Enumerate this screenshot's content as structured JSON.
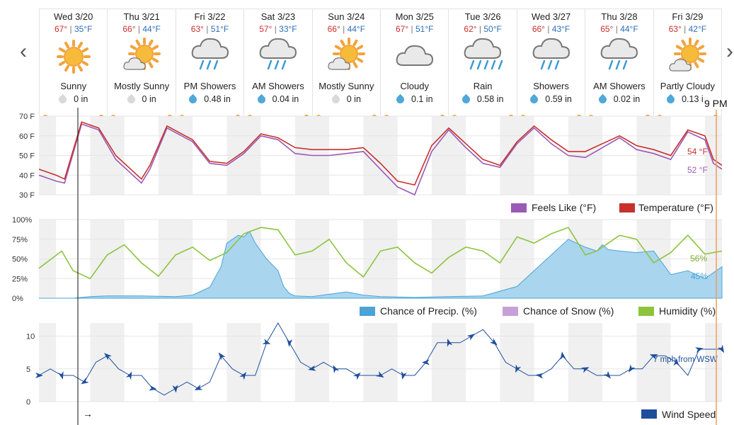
{
  "nav": {
    "prev_label": "‹",
    "next_label": "›"
  },
  "time_label": "9 PM",
  "arrow_label": "→",
  "days": [
    {
      "name": "Wed 3/20",
      "hi": "67°",
      "lo": "35°F",
      "icon": "sunny-icon",
      "cond": "Sunny",
      "precip": "0 in",
      "wet": false
    },
    {
      "name": "Thu 3/21",
      "hi": "66°",
      "lo": "44°F",
      "icon": "mostly-sunny-icon",
      "cond": "Mostly Sunny",
      "precip": "0 in",
      "wet": false
    },
    {
      "name": "Fri 3/22",
      "hi": "63°",
      "lo": "51°F",
      "icon": "showers-icon",
      "cond": "PM Showers",
      "precip": "0.48 in",
      "wet": true
    },
    {
      "name": "Sat 3/23",
      "hi": "57°",
      "lo": "33°F",
      "icon": "showers-icon",
      "cond": "AM Showers",
      "precip": "0.04 in",
      "wet": true
    },
    {
      "name": "Sun 3/24",
      "hi": "66°",
      "lo": "44°F",
      "icon": "mostly-sunny-icon",
      "cond": "Mostly Sunny",
      "precip": "0 in",
      "wet": false
    },
    {
      "name": "Mon 3/25",
      "hi": "67°",
      "lo": "51°F",
      "icon": "cloudy-icon",
      "cond": "Cloudy",
      "precip": "0.1 in",
      "wet": true
    },
    {
      "name": "Tue 3/26",
      "hi": "62°",
      "lo": "50°F",
      "icon": "rain-icon",
      "cond": "Rain",
      "precip": "0.58 in",
      "wet": true
    },
    {
      "name": "Wed 3/27",
      "hi": "66°",
      "lo": "43°F",
      "icon": "showers-icon",
      "cond": "Showers",
      "precip": "0.59 in",
      "wet": true
    },
    {
      "name": "Thu 3/28",
      "hi": "65°",
      "lo": "44°F",
      "icon": "showers-icon",
      "cond": "AM Showers",
      "precip": "0.02 in",
      "wet": true
    },
    {
      "name": "Fri 3/29",
      "hi": "63°",
      "lo": "42°F",
      "icon": "partly-cloudy-icon",
      "cond": "Partly Cloudy",
      "precip": "0.13 in",
      "wet": true
    }
  ],
  "colors": {
    "temperature": "#c8302c",
    "feels_like": "#9b59b6",
    "precip": "#4ba3d6",
    "snow": "#c7a0d8",
    "humidity": "#8cc43c",
    "wind": "#1f4f9c",
    "hi_text": "#c8302c",
    "lo_text": "#2d6fb7"
  },
  "chart_data": [
    {
      "type": "line",
      "yticks": [
        "70 F",
        "60 F",
        "50 F",
        "40 F",
        "30 F"
      ],
      "ylim": [
        30,
        70
      ],
      "x_units": "hours from 12 AM Wed 3/20",
      "series": [
        {
          "name": "Temperature (°F)",
          "x": [
            0,
            6,
            9,
            15,
            21,
            27,
            33,
            36,
            39,
            45,
            54,
            60,
            66,
            72,
            78,
            84,
            90,
            96,
            102,
            108,
            114,
            120,
            126,
            132,
            138,
            144,
            150,
            156,
            162,
            168,
            174,
            180,
            186,
            192,
            198,
            204,
            210,
            216,
            222,
            228,
            234,
            237,
            240
          ],
          "y": [
            43,
            40,
            38,
            67,
            64,
            50,
            42,
            38,
            45,
            65,
            58,
            47,
            46,
            52,
            61,
            59,
            54,
            53,
            53,
            53,
            54,
            46,
            37,
            35,
            55,
            64,
            56,
            48,
            45,
            57,
            65,
            58,
            52,
            52,
            56,
            60,
            55,
            53,
            50,
            63,
            60,
            48,
            45
          ]
        },
        {
          "name": "Feels Like (°F)",
          "x": [
            0,
            6,
            9,
            15,
            21,
            27,
            33,
            36,
            39,
            45,
            54,
            60,
            66,
            72,
            78,
            84,
            90,
            96,
            102,
            108,
            114,
            120,
            126,
            132,
            138,
            144,
            150,
            156,
            162,
            168,
            174,
            180,
            186,
            192,
            198,
            204,
            210,
            216,
            222,
            228,
            234,
            237,
            240
          ],
          "y": [
            40,
            37,
            36,
            66,
            63,
            48,
            40,
            36,
            43,
            64,
            57,
            46,
            45,
            51,
            60,
            58,
            51,
            50,
            50,
            51,
            52,
            43,
            34,
            30,
            52,
            63,
            54,
            46,
            44,
            56,
            64,
            56,
            50,
            49,
            54,
            59,
            53,
            51,
            48,
            62,
            58,
            46,
            43
          ]
        }
      ],
      "annotations": [
        "54 °F",
        "52 °F"
      ]
    },
    {
      "type": "area",
      "yticks": [
        "100%",
        "75%",
        "50%",
        "25%",
        "0%"
      ],
      "ylim": [
        0,
        100
      ],
      "series": [
        {
          "name": "Chance of Precip. (%)",
          "x": [
            0,
            12,
            18,
            24,
            36,
            48,
            54,
            60,
            64,
            66,
            70,
            72,
            74,
            76,
            80,
            84,
            86,
            88,
            90,
            96,
            102,
            108,
            114,
            120,
            132,
            144,
            156,
            168,
            174,
            180,
            186,
            192,
            196,
            198,
            200,
            204,
            210,
            216,
            222,
            228,
            234,
            240
          ],
          "y": [
            0,
            0,
            2,
            3,
            3,
            2,
            4,
            14,
            40,
            70,
            80,
            78,
            85,
            70,
            50,
            35,
            15,
            6,
            3,
            2,
            5,
            8,
            4,
            2,
            1,
            2,
            3,
            15,
            35,
            55,
            75,
            65,
            60,
            68,
            62,
            60,
            58,
            60,
            30,
            35,
            25,
            40
          ]
        },
        {
          "name": "Chance of Snow (%)",
          "x": [
            0,
            240
          ],
          "y": [
            0,
            0
          ]
        },
        {
          "name": "Humidity (%)",
          "x": [
            0,
            8,
            12,
            18,
            24,
            30,
            36,
            42,
            48,
            54,
            60,
            66,
            72,
            78,
            84,
            90,
            96,
            102,
            108,
            114,
            120,
            126,
            132,
            138,
            144,
            150,
            156,
            162,
            168,
            174,
            180,
            186,
            192,
            196,
            204,
            210,
            216,
            222,
            228,
            234,
            240
          ],
          "y": [
            38,
            60,
            35,
            25,
            55,
            68,
            45,
            28,
            55,
            65,
            48,
            58,
            82,
            90,
            87,
            55,
            60,
            75,
            45,
            27,
            60,
            65,
            45,
            32,
            52,
            65,
            60,
            45,
            78,
            70,
            82,
            90,
            55,
            60,
            80,
            75,
            45,
            58,
            80,
            56,
            60
          ]
        }
      ],
      "annotations": [
        "56%",
        "45%"
      ]
    },
    {
      "type": "line",
      "yticks": [
        "10",
        "5",
        "0"
      ],
      "ylim": [
        0,
        12
      ],
      "series": [
        {
          "name": "Wind Speed",
          "x": [
            0,
            4,
            8,
            12,
            16,
            20,
            24,
            28,
            32,
            36,
            40,
            44,
            48,
            52,
            56,
            60,
            64,
            68,
            72,
            76,
            80,
            84,
            88,
            92,
            96,
            100,
            104,
            108,
            112,
            116,
            120,
            124,
            128,
            132,
            136,
            140,
            144,
            148,
            152,
            156,
            160,
            164,
            168,
            172,
            176,
            180,
            184,
            188,
            192,
            196,
            200,
            204,
            208,
            212,
            216,
            220,
            224,
            228,
            232,
            236,
            240
          ],
          "y": [
            4,
            5,
            4,
            4,
            3,
            6,
            7,
            5,
            4,
            4,
            2,
            1,
            2,
            3,
            2,
            3,
            7,
            5,
            4,
            4,
            9,
            12,
            9,
            6,
            5,
            6,
            5,
            5,
            4,
            4,
            4,
            5,
            4,
            4,
            6,
            9,
            9,
            9,
            10,
            11,
            9,
            6,
            5,
            4,
            4,
            5,
            7,
            5,
            5,
            4,
            4,
            4,
            5,
            5,
            7,
            7,
            6,
            4,
            8,
            8,
            8
          ]
        }
      ],
      "annotations": [
        "7 mph from WSW"
      ]
    }
  ]
}
